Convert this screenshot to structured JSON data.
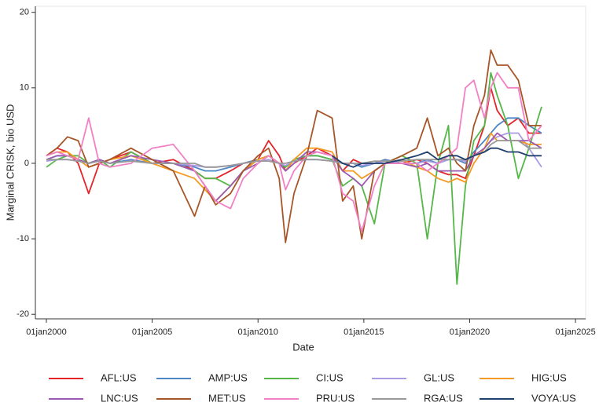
{
  "chart_data": {
    "type": "line",
    "y_label": "Marginal CRISK, bio USD",
    "x_label": "Date",
    "x": [
      2000.0,
      2000.5,
      2001.0,
      2001.5,
      2002.0,
      2002.5,
      2003.0,
      2004.0,
      2005.0,
      2006.0,
      2007.0,
      2007.5,
      2008.0,
      2008.7,
      2009.3,
      2010.0,
      2010.5,
      2011.0,
      2011.3,
      2011.7,
      2012.3,
      2012.8,
      2013.5,
      2014.0,
      2014.5,
      2014.9,
      2015.5,
      2016.0,
      2016.8,
      2017.5,
      2018.0,
      2018.5,
      2019.0,
      2019.4,
      2019.8,
      2020.2,
      2020.7,
      2021.0,
      2021.3,
      2021.8,
      2022.3,
      2022.8,
      2023.4
    ],
    "xlim": [
      1999.48,
      2025.48
    ],
    "xticks": [
      {
        "value": 2000,
        "label": "01jan2000"
      },
      {
        "value": 2005,
        "label": "01jan2005"
      },
      {
        "value": 2010,
        "label": "01jan2010"
      },
      {
        "value": 2015,
        "label": "01jan2015"
      },
      {
        "value": 2020,
        "label": "01jan2020"
      },
      {
        "value": 2025,
        "label": "01jan2025"
      }
    ],
    "ylim": [
      -20.6,
      20.8
    ],
    "yticks": [
      -20,
      -10,
      0,
      10,
      20
    ],
    "grid": false,
    "legend": "bottom",
    "series": [
      {
        "name": "AFL:US",
        "color": "#e3242b",
        "values": [
          1,
          2,
          1.5,
          0,
          -4,
          0,
          0.5,
          1.5,
          0,
          0.5,
          -1,
          -2,
          -2,
          -1,
          0,
          0.5,
          3,
          1,
          -1,
          0,
          1,
          2,
          1,
          -1,
          0.5,
          0,
          0,
          0.5,
          0,
          0.5,
          0,
          -1,
          -1.5,
          -1.5,
          -2,
          1,
          5,
          10,
          7,
          5,
          6,
          4,
          4
        ]
      },
      {
        "name": "AMP:US",
        "color": "#4c86c6",
        "values": [
          0.5,
          1,
          1,
          0.5,
          0,
          0.5,
          0,
          0.5,
          0,
          0,
          -0.5,
          -1,
          -1,
          -0.5,
          0,
          0.5,
          1,
          0,
          -0.5,
          0.5,
          1,
          1,
          0.5,
          0,
          0,
          -0.5,
          0,
          0.5,
          0,
          0,
          0.5,
          0,
          0.5,
          0.5,
          0,
          1.5,
          3,
          4,
          5,
          6,
          6,
          5,
          4
        ]
      },
      {
        "name": "CI:US",
        "color": "#55b748",
        "values": [
          -0.5,
          0.5,
          1,
          1,
          0,
          0.5,
          -0.5,
          1.5,
          0,
          0,
          -1,
          -2,
          -2,
          -3,
          -1,
          0.5,
          1,
          0,
          -0.5,
          0.5,
          1,
          1,
          0.5,
          -3,
          -2,
          -3,
          -8,
          0,
          1,
          0,
          -10,
          0,
          5,
          -16,
          -3,
          3,
          5,
          12,
          9,
          5,
          -2,
          2,
          7.5
        ]
      },
      {
        "name": "GL:US",
        "color": "#aa9be3",
        "values": [
          0.3,
          0.5,
          0.5,
          0.3,
          0,
          0.3,
          0,
          0.3,
          0,
          0,
          -0.3,
          -0.5,
          -0.5,
          -0.3,
          0,
          0.3,
          0.5,
          0,
          -0.3,
          0.3,
          0.5,
          0.5,
          0.3,
          0,
          0,
          -0.3,
          0,
          0.3,
          0,
          0,
          0.3,
          0,
          0.5,
          0.5,
          0.3,
          1,
          2,
          3,
          3.5,
          4,
          4,
          2,
          -0.5
        ]
      },
      {
        "name": "HIG:US",
        "color": "#f59a23",
        "values": [
          1,
          1.5,
          1.5,
          0.5,
          -0.5,
          0,
          0.5,
          1,
          0,
          -1,
          -2,
          -3.5,
          -5,
          -3,
          -1,
          0.5,
          1,
          0,
          -1,
          0.5,
          2,
          2,
          1.5,
          -1,
          -1,
          -2,
          -1,
          0,
          0.5,
          -0.5,
          -1,
          -2,
          -2.5,
          -2,
          -2.5,
          0,
          2,
          4,
          3,
          3,
          3,
          2.5,
          2.5
        ]
      },
      {
        "name": "LNC:US",
        "color": "#9a5bb0",
        "values": [
          0.5,
          1,
          1,
          0.5,
          0,
          0.5,
          0,
          1,
          0.5,
          0,
          -1,
          -3,
          -5,
          -3,
          -1,
          0,
          1,
          0,
          -1,
          0,
          1.5,
          1.5,
          1,
          -1,
          -2,
          -3,
          -1,
          0,
          0,
          -0.5,
          0,
          -1,
          -1,
          -1,
          -1,
          1,
          2,
          3,
          4,
          3,
          3,
          3,
          2
        ]
      },
      {
        "name": "MET:US",
        "color": "#a65628",
        "values": [
          1,
          2,
          3.5,
          3,
          -0.5,
          0,
          0.5,
          2,
          0.5,
          -1,
          -7,
          -3,
          -5.5,
          -4,
          -1,
          1,
          2,
          -2,
          -10.5,
          -4,
          1,
          7,
          6,
          -5,
          -3,
          -10,
          -1,
          0,
          1,
          2,
          6,
          1,
          2,
          0,
          -1,
          5,
          9,
          15,
          13,
          13,
          11,
          5,
          5
        ]
      },
      {
        "name": "PRU:US",
        "color": "#f280c4",
        "values": [
          1,
          1.5,
          1,
          0.5,
          6,
          0,
          -0.5,
          0,
          2,
          2.5,
          -1,
          -3,
          -5,
          -6,
          -2,
          0,
          1,
          0,
          -3.5,
          -1,
          1,
          1.5,
          1,
          -4,
          -5,
          -9,
          -3,
          0,
          0,
          0,
          -1,
          0,
          1,
          2,
          10,
          11,
          6,
          10,
          12,
          10,
          10,
          3,
          5
        ]
      },
      {
        "name": "RGA:US",
        "color": "#999999",
        "values": [
          0.5,
          0.5,
          0.5,
          0.3,
          0,
          0.3,
          0,
          0.3,
          0,
          0,
          0,
          -0.5,
          -0.5,
          -0.3,
          0,
          0.3,
          0.3,
          0,
          0,
          0.3,
          0.5,
          0.5,
          0.3,
          0,
          0,
          0,
          0.3,
          0.3,
          0.3,
          0.5,
          0.5,
          0.5,
          0.5,
          0.5,
          0.5,
          1,
          1.5,
          2.5,
          3,
          3,
          3,
          2,
          2
        ]
      },
      {
        "name": "VOYA:US",
        "color": "#1f3f6e",
        "values": [
          null,
          null,
          null,
          null,
          null,
          null,
          null,
          null,
          null,
          null,
          null,
          null,
          null,
          null,
          null,
          null,
          null,
          null,
          null,
          null,
          null,
          null,
          1,
          0,
          -0.5,
          0,
          0,
          0,
          0.5,
          1,
          1.5,
          0.5,
          1,
          1,
          0.5,
          1,
          1.5,
          2,
          2,
          1.5,
          1.5,
          1,
          1
        ]
      }
    ]
  }
}
